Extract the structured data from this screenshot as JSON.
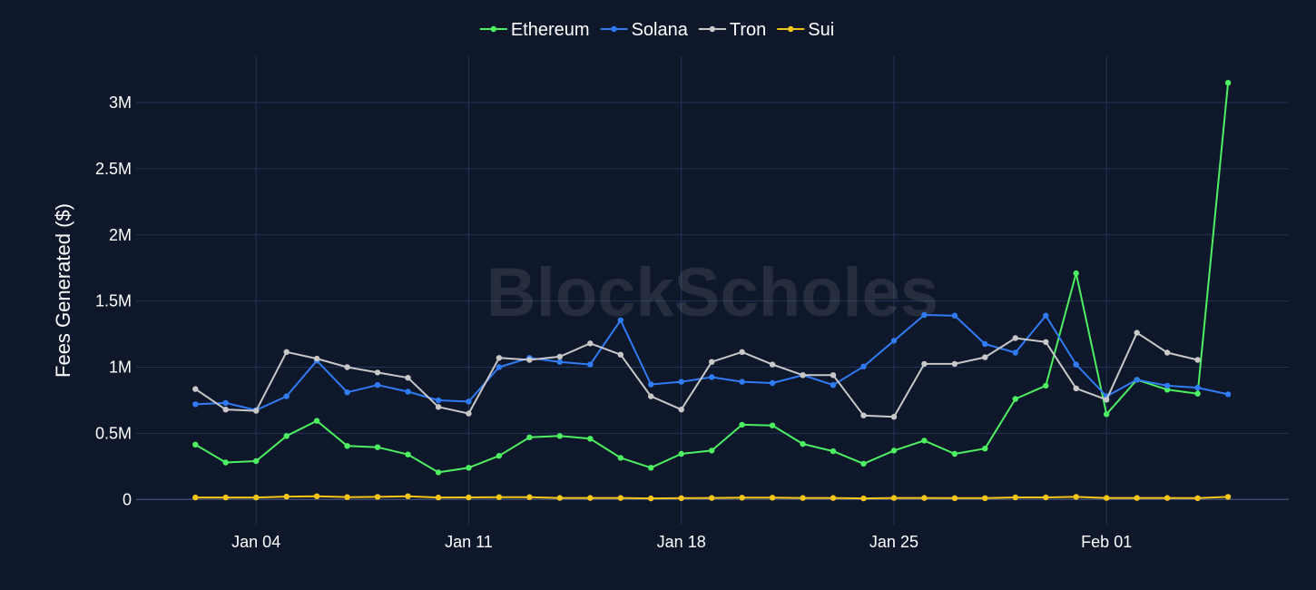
{
  "watermark": "BlockScholes",
  "chart_data": {
    "type": "line",
    "title": "",
    "xlabel": "",
    "ylabel": "Fees Generated ($)",
    "ylim": [
      -190000,
      3350000
    ],
    "yticks": [
      {
        "value": 0,
        "label": "0"
      },
      {
        "value": 500000,
        "label": "0.5M"
      },
      {
        "value": 1000000,
        "label": "1M"
      },
      {
        "value": 1500000,
        "label": "1.5M"
      },
      {
        "value": 2000000,
        "label": "2M"
      },
      {
        "value": 2500000,
        "label": "2.5M"
      },
      {
        "value": 3000000,
        "label": "3M"
      }
    ],
    "xticks": [
      {
        "index": 2,
        "label": "Jan 04"
      },
      {
        "index": 9,
        "label": "Jan 11"
      },
      {
        "index": 16,
        "label": "Jan 18"
      },
      {
        "index": 23,
        "label": "Jan 25"
      },
      {
        "index": 30,
        "label": "Feb 01"
      }
    ],
    "x_index_range": [
      -1.95,
      36
    ],
    "x": [
      "Jan 02",
      "Jan 03",
      "Jan 04",
      "Jan 05",
      "Jan 06",
      "Jan 07",
      "Jan 08",
      "Jan 09",
      "Jan 10",
      "Jan 11",
      "Jan 12",
      "Jan 13",
      "Jan 14",
      "Jan 15",
      "Jan 16",
      "Jan 17",
      "Jan 18",
      "Jan 19",
      "Jan 20",
      "Jan 21",
      "Jan 22",
      "Jan 23",
      "Jan 24",
      "Jan 25",
      "Jan 26",
      "Jan 27",
      "Jan 28",
      "Jan 29",
      "Jan 30",
      "Jan 31",
      "Feb 01",
      "Feb 02",
      "Feb 03",
      "Feb 04",
      "Feb 05"
    ],
    "legend_position": "top-center",
    "grid": true,
    "series": [
      {
        "name": "Ethereum",
        "color": "#4cf061",
        "values": [
          415000,
          280000,
          290000,
          480000,
          595000,
          405000,
          395000,
          340000,
          205000,
          240000,
          330000,
          470000,
          480000,
          460000,
          315000,
          240000,
          345000,
          370000,
          565000,
          560000,
          420000,
          365000,
          270000,
          370000,
          445000,
          345000,
          385000,
          760000,
          860000,
          1710000,
          645000,
          905000,
          830000,
          800000,
          3150000
        ]
      },
      {
        "name": "Solana",
        "color": "#2f7cf6",
        "values": [
          720000,
          730000,
          675000,
          780000,
          1050000,
          810000,
          865000,
          815000,
          750000,
          740000,
          1000000,
          1070000,
          1040000,
          1020000,
          1355000,
          870000,
          890000,
          925000,
          890000,
          880000,
          940000,
          865000,
          1005000,
          1200000,
          1395000,
          1390000,
          1175000,
          1110000,
          1390000,
          1020000,
          780000,
          905000,
          860000,
          845000,
          795000
        ]
      },
      {
        "name": "Tron",
        "color": "#c8c8c8",
        "values": [
          835000,
          680000,
          670000,
          1115000,
          1065000,
          1000000,
          960000,
          920000,
          700000,
          650000,
          1070000,
          1055000,
          1080000,
          1180000,
          1095000,
          780000,
          680000,
          1040000,
          1115000,
          1020000,
          940000,
          940000,
          635000,
          625000,
          1025000,
          1025000,
          1075000,
          1220000,
          1190000,
          840000,
          755000,
          1260000,
          1110000,
          1055000,
          null
        ]
      },
      {
        "name": "Sui",
        "color": "#f5c518",
        "values": [
          15000,
          15000,
          15000,
          22000,
          25000,
          18000,
          20000,
          25000,
          15000,
          16000,
          18000,
          18000,
          12000,
          12000,
          12000,
          8000,
          10000,
          12000,
          14000,
          14000,
          12000,
          12000,
          8000,
          12000,
          12000,
          10000,
          10000,
          16000,
          16000,
          20000,
          12000,
          12000,
          12000,
          10000,
          20000
        ]
      }
    ]
  }
}
